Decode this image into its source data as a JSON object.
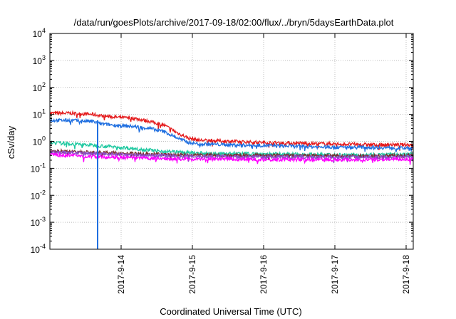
{
  "chart_data": {
    "type": "line",
    "title": "/data/run/goesPlots/archive/2017-09-18/02:00/flux/../bryn/5daysEarthData.plot",
    "xlabel": "Coordinated Universal Time (UTC)",
    "ylabel": "cSv/day",
    "yscale": "log",
    "ylim": [
      0.0001,
      10000
    ],
    "xlim": [
      0,
      5.1
    ],
    "x_ticks": [
      {
        "x": 1,
        "label": "2017-9-14"
      },
      {
        "x": 2,
        "label": "2017-9-15"
      },
      {
        "x": 3,
        "label": "2017-9-16"
      },
      {
        "x": 4,
        "label": "2017-9-17"
      },
      {
        "x": 5,
        "label": "2017-9-18"
      }
    ],
    "y_ticks": [
      {
        "v": 0.0001,
        "base": "10",
        "exp": "-4"
      },
      {
        "v": 0.001,
        "base": "10",
        "exp": "-3"
      },
      {
        "v": 0.01,
        "base": "10",
        "exp": "-2"
      },
      {
        "v": 0.1,
        "base": "10",
        "exp": "-1"
      },
      {
        "v": 1,
        "base": "10",
        "exp": "0"
      },
      {
        "v": 10,
        "base": "10",
        "exp": "1"
      },
      {
        "v": 100,
        "base": "10",
        "exp": "2"
      },
      {
        "v": 1000,
        "base": "10",
        "exp": "3"
      },
      {
        "v": 10000,
        "base": "10",
        "exp": "4"
      }
    ],
    "grid": true,
    "legend": "none",
    "series": [
      {
        "color": "#e41a1c",
        "x": [
          0,
          0.3,
          0.6,
          0.7,
          0.9,
          1.2,
          1.4,
          1.6,
          1.8,
          1.95,
          2.1,
          2.5,
          3.0,
          3.5,
          4.0,
          4.5,
          5.1
        ],
        "y": [
          11,
          11,
          10,
          9,
          8,
          7,
          5.5,
          4,
          2,
          1.3,
          1.1,
          1.0,
          0.9,
          0.85,
          0.8,
          0.75,
          0.75
        ]
      },
      {
        "color": "#1f6fe0",
        "x": [
          0,
          0.3,
          0.6,
          0.7,
          0.9,
          1.2,
          1.4,
          1.6,
          1.8,
          1.95,
          2.1,
          2.5,
          3.0,
          3.5,
          4.0,
          4.5,
          5.1
        ],
        "y": [
          6,
          6,
          5.5,
          4.5,
          4,
          3.5,
          3,
          2.3,
          1.3,
          0.9,
          0.8,
          0.75,
          0.7,
          0.65,
          0.6,
          0.6,
          0.55
        ]
      },
      {
        "color": "#1ec8a0",
        "x": [
          0,
          0.5,
          1.0,
          1.5,
          2.0,
          2.5,
          3.0,
          3.5,
          4.0,
          4.5,
          5.1
        ],
        "y": [
          0.9,
          0.75,
          0.6,
          0.45,
          0.37,
          0.35,
          0.34,
          0.33,
          0.32,
          0.32,
          0.33
        ]
      },
      {
        "color": "#7a2e2e",
        "x": [
          0,
          0.5,
          1.0,
          1.5,
          2.0,
          2.5,
          3.0,
          3.5,
          4.0,
          4.5,
          5.1
        ],
        "y": [
          0.45,
          0.4,
          0.36,
          0.33,
          0.31,
          0.3,
          0.3,
          0.29,
          0.29,
          0.29,
          0.3
        ]
      },
      {
        "color": "#8a4fc8",
        "x": [
          0,
          0.5,
          1.0,
          1.5,
          2.0,
          2.5,
          3.0,
          3.5,
          4.0,
          4.5,
          5.1
        ],
        "y": [
          0.4,
          0.36,
          0.33,
          0.3,
          0.28,
          0.27,
          0.27,
          0.26,
          0.26,
          0.26,
          0.27
        ]
      },
      {
        "color": "#ff00ff",
        "x": [
          0,
          0.5,
          1.0,
          1.5,
          2.0,
          2.5,
          3.0,
          3.5,
          4.0,
          4.5,
          5.1
        ],
        "y": [
          0.32,
          0.28,
          0.25,
          0.23,
          0.22,
          0.22,
          0.21,
          0.21,
          0.21,
          0.21,
          0.22
        ]
      }
    ],
    "annotations": [
      {
        "type": "drop",
        "color": "#ff00ff",
        "x": 0.67,
        "y_top": 0.28,
        "y_bottom": 0.0001
      },
      {
        "type": "drop",
        "color": "#1f6fe0",
        "x": 0.67,
        "y_top": 6,
        "y_bottom": 0.0001
      }
    ]
  }
}
